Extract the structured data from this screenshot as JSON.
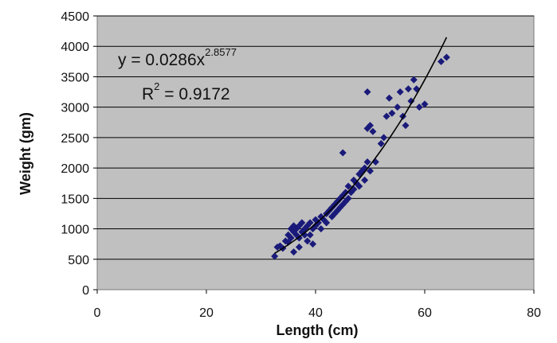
{
  "chart_data": {
    "type": "scatter",
    "xlabel": "Length (cm)",
    "ylabel": "Weight (gm)",
    "xlim": [
      0,
      80
    ],
    "ylim": [
      0,
      4500
    ],
    "x_ticks": [
      "0",
      "20",
      "40",
      "60",
      "80"
    ],
    "y_ticks": [
      "0",
      "500",
      "1000",
      "1500",
      "2000",
      "2500",
      "3000",
      "3500",
      "4000",
      "4500"
    ],
    "grid": "horizontal",
    "legend": "none",
    "annotations": {
      "equation_prefix": "y = 0.0286x",
      "equation_exponent": "2.8577",
      "r2_prefix": "R",
      "r2_exponent": "2",
      "r2_suffix": " = 0.9172"
    },
    "trendline": {
      "type": "power",
      "a": 0.0286,
      "b": 2.8577,
      "x_range": [
        32.5,
        64
      ]
    },
    "colors": {
      "plot_bg": "#c0c0c0",
      "marker": "#1a1a7a",
      "trendline": "#000000",
      "grid": "#000000"
    },
    "points": [
      [
        32.5,
        550
      ],
      [
        33.0,
        700
      ],
      [
        33.5,
        720
      ],
      [
        34.0,
        680
      ],
      [
        34.5,
        800
      ],
      [
        35.0,
        780
      ],
      [
        35.0,
        900
      ],
      [
        35.5,
        850
      ],
      [
        35.5,
        1000
      ],
      [
        36.0,
        620
      ],
      [
        36.0,
        950
      ],
      [
        36.0,
        1050
      ],
      [
        36.5,
        900
      ],
      [
        36.5,
        1000
      ],
      [
        37.0,
        850
      ],
      [
        37.0,
        1050
      ],
      [
        37.0,
        700
      ],
      [
        37.5,
        950
      ],
      [
        37.5,
        1100
      ],
      [
        38.0,
        900
      ],
      [
        38.0,
        1000
      ],
      [
        38.5,
        1050
      ],
      [
        38.5,
        800
      ],
      [
        39.0,
        900
      ],
      [
        39.0,
        1100
      ],
      [
        39.5,
        1000
      ],
      [
        39.5,
        750
      ],
      [
        40.0,
        1050
      ],
      [
        40.0,
        1150
      ],
      [
        40.5,
        1100
      ],
      [
        41.0,
        1000
      ],
      [
        41.0,
        1200
      ],
      [
        41.5,
        1150
      ],
      [
        42.0,
        1250
      ],
      [
        42.0,
        1100
      ],
      [
        42.5,
        1300
      ],
      [
        43.0,
        1200
      ],
      [
        43.0,
        1350
      ],
      [
        43.5,
        1400
      ],
      [
        43.5,
        1250
      ],
      [
        44.0,
        1450
      ],
      [
        44.0,
        1300
      ],
      [
        44.5,
        1500
      ],
      [
        44.5,
        1350
      ],
      [
        45.0,
        1550
      ],
      [
        45.0,
        1400
      ],
      [
        45.5,
        1600
      ],
      [
        45.5,
        1450
      ],
      [
        46.0,
        1700
      ],
      [
        46.0,
        1500
      ],
      [
        46.5,
        1600
      ],
      [
        47.0,
        1800
      ],
      [
        47.0,
        1650
      ],
      [
        47.5,
        1750
      ],
      [
        48.0,
        1900
      ],
      [
        48.0,
        1700
      ],
      [
        48.5,
        1950
      ],
      [
        49.0,
        2000
      ],
      [
        49.0,
        1800
      ],
      [
        49.5,
        2100
      ],
      [
        49.5,
        2650
      ],
      [
        49.5,
        3250
      ],
      [
        50.0,
        2700
      ],
      [
        50.0,
        1950
      ],
      [
        50.5,
        2600
      ],
      [
        51.0,
        2100
      ],
      [
        52.0,
        2400
      ],
      [
        52.5,
        2500
      ],
      [
        53.0,
        2850
      ],
      [
        53.5,
        3150
      ],
      [
        54.0,
        2900
      ],
      [
        55.0,
        3000
      ],
      [
        55.5,
        3250
      ],
      [
        56.0,
        2850
      ],
      [
        56.5,
        2700
      ],
      [
        57.0,
        3300
      ],
      [
        57.5,
        3100
      ],
      [
        58.0,
        3450
      ],
      [
        58.5,
        3300
      ],
      [
        59.0,
        3000
      ],
      [
        60.0,
        3050
      ],
      [
        63.0,
        3750
      ],
      [
        64.0,
        3820
      ],
      [
        45.0,
        2250
      ]
    ]
  }
}
